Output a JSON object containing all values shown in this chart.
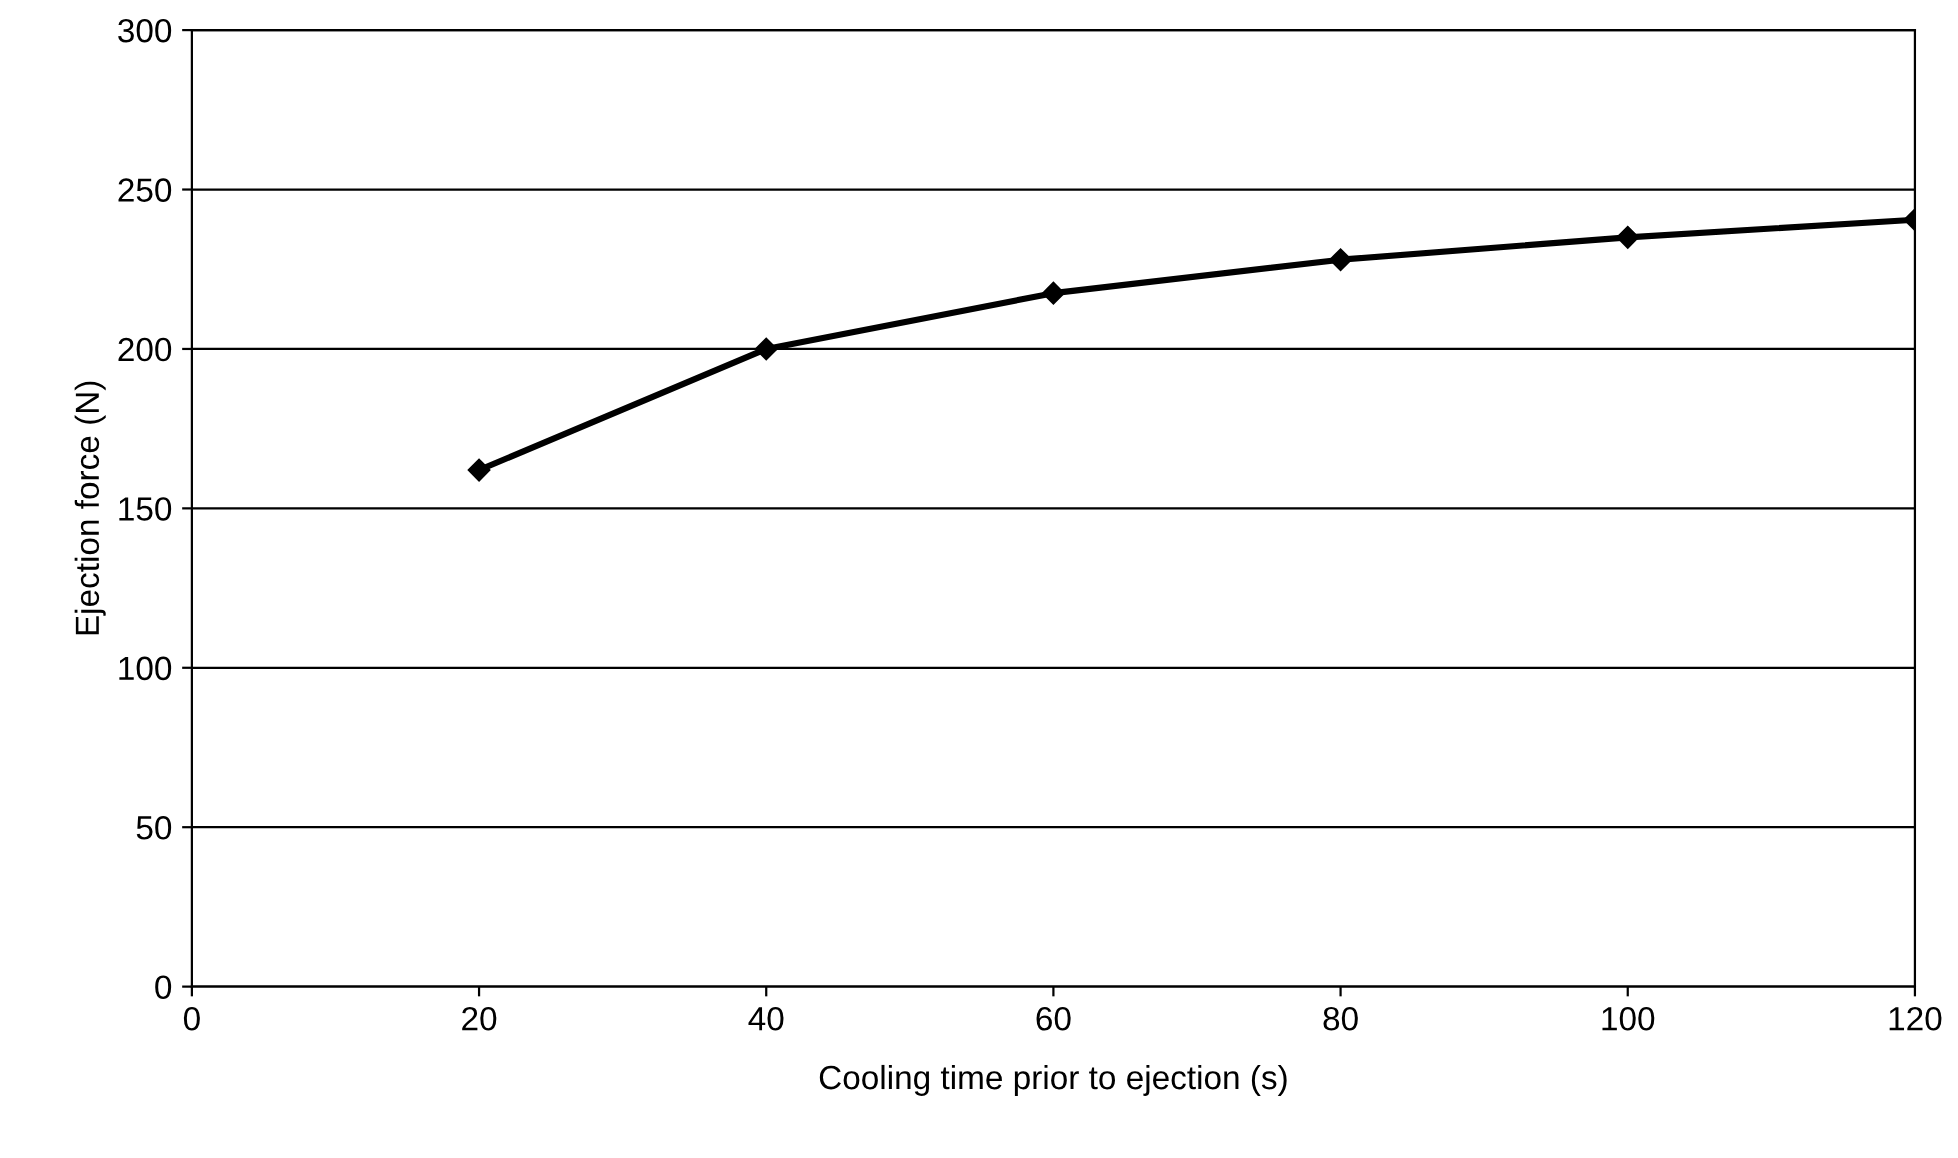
{
  "chart_data": {
    "type": "line",
    "xlabel": "Cooling time prior to ejection (s)",
    "ylabel": "Ejection force (N)",
    "x": [
      20,
      40,
      60,
      80,
      100,
      120
    ],
    "series": [
      {
        "color": "#000000",
        "values": [
          162,
          200,
          217.5,
          228,
          235,
          240.5
        ]
      }
    ],
    "xlim": [
      0,
      120
    ],
    "xticks": [
      0,
      20,
      40,
      60,
      80,
      100,
      120
    ],
    "ylim": [
      0,
      300
    ],
    "yticks": [
      0,
      50,
      100,
      150,
      200,
      250,
      300
    ],
    "grid": "y",
    "legend": false,
    "marker": "diamond",
    "line_style": "solid"
  }
}
